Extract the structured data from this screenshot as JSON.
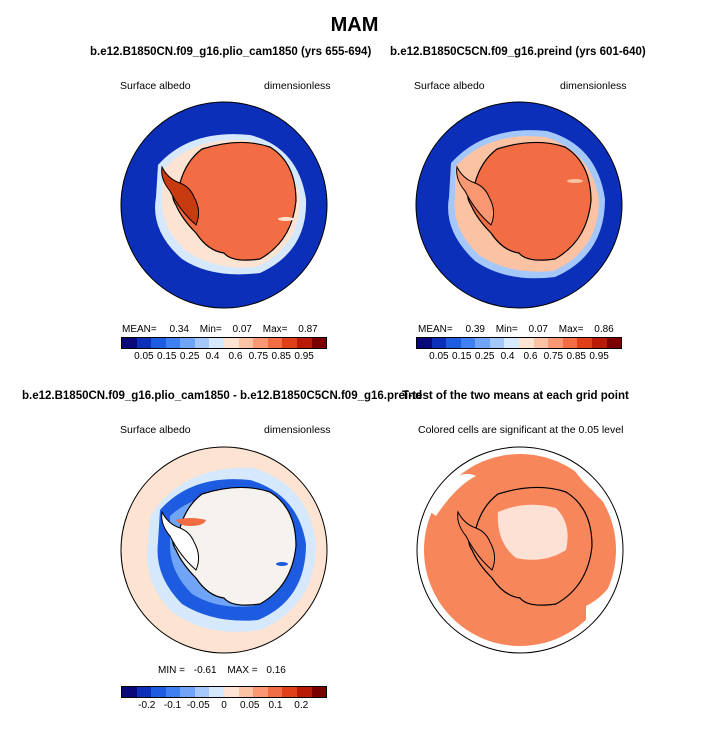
{
  "title": "MAM",
  "panels": [
    {
      "title": "b.e12.B1850CN.f09_g16.plio_cam1850 (yrs 655-694)",
      "variable": "Surface albedo",
      "units": "dimensionless",
      "mean_label": "MEAN=",
      "mean": "0.34",
      "min_label": "Min=",
      "min": "0.07",
      "max_label": "Max=",
      "max": "0.87"
    },
    {
      "title": "b.e12.B1850C5CN.f09_g16.preind (yrs 601-640)",
      "variable": "Surface albedo",
      "units": "dimensionless",
      "mean_label": "MEAN=",
      "mean": "0.39",
      "min_label": "Min=",
      "min": "0.07",
      "max_label": "Max=",
      "max": "0.86"
    },
    {
      "title": "b.e12.B1850CN.f09_g16.plio_cam1850 - b.e12.B1850C5CN.f09_g16.preind",
      "variable": "Surface albedo",
      "units": "dimensionless",
      "min_label": "MIN =",
      "min": "-0.61",
      "max_label": "MAX =",
      "max": "0.16"
    },
    {
      "title": "T-test of the two means at each grid point",
      "subtitle": "Colored cells are significant at the 0.05 level"
    }
  ],
  "colorbar_abs": {
    "colors": [
      "#08087a",
      "#0b2fb8",
      "#1d5ce0",
      "#3f7ff0",
      "#6fa4f6",
      "#a5c8fa",
      "#d6e8fc",
      "#fde4d2",
      "#fbc3a3",
      "#f99872",
      "#f26c44",
      "#e04018",
      "#b91a05",
      "#7a0000"
    ],
    "labels": [
      "0.05",
      "0.15",
      "0.25",
      "0.4",
      "0.6",
      "0.75",
      "0.85",
      "0.95"
    ]
  },
  "colorbar_diff": {
    "colors": [
      "#08087a",
      "#0b2fb8",
      "#1d5ce0",
      "#3f7ff0",
      "#6fa4f6",
      "#a5c8fa",
      "#d6e8fc",
      "#fde4d2",
      "#fbc3a3",
      "#f99872",
      "#f26c44",
      "#e04018",
      "#b91a05",
      "#7a0000"
    ],
    "labels": [
      "-0.2",
      "-0.1",
      "-0.05",
      "0",
      "0.05",
      "0.1",
      "0.2"
    ]
  }
}
